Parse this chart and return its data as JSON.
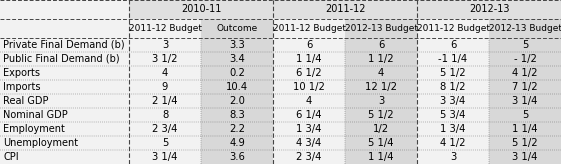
{
  "col_group_labels": [
    "2010-11",
    "2011-12",
    "2012-13"
  ],
  "sub_headers": [
    "2011-12 Budget",
    "Outcome",
    "2011-12 Budget",
    "2012-13 Budget",
    "2011-12 Budget",
    "2012-13 Budget"
  ],
  "row_labels": [
    "Private Final Demand (b)",
    "Public Final Demand (b)",
    "Exports",
    "Imports",
    "Real GDP",
    "Nominal GDP",
    "Employment",
    "Unemployment",
    "CPI"
  ],
  "data": [
    [
      "3",
      "3.3",
      "6",
      "6",
      "6",
      "5"
    ],
    [
      "3 1/2",
      "3.4",
      "1 1/4",
      "1 1/2",
      "-1 1/4",
      "- 1/2"
    ],
    [
      "4",
      "0.2",
      "6 1/2",
      "4",
      "5 1/2",
      "4 1/2"
    ],
    [
      "9",
      "10.4",
      "10 1/2",
      "12 1/2",
      "8 1/2",
      "7 1/2"
    ],
    [
      "2 1/4",
      "2.0",
      "4",
      "3",
      "3 3/4",
      "3 1/4"
    ],
    [
      "8",
      "8.3",
      "6 1/4",
      "5 1/2",
      "5 3/4",
      "5"
    ],
    [
      "2 3/4",
      "2.2",
      "1 3/4",
      "1/2",
      "1 3/4",
      "1 1/4"
    ],
    [
      "5",
      "4.9",
      "4 3/4",
      "5 1/4",
      "4 1/2",
      "5 1/2"
    ],
    [
      "3 1/4",
      "3.6",
      "2 3/4",
      "1 1/4",
      "3",
      "3 1/4"
    ]
  ],
  "bg_label_col": "#f2f2f2",
  "bg_col_light": "#d8d8d8",
  "bg_col_white": "#f2f2f2",
  "bg_header_top": "#e0e0e0",
  "border_color": "#444444",
  "text_color": "#000000",
  "data_fontsize": 7.2,
  "header_fontsize": 7.0,
  "label_fontsize": 7.0
}
